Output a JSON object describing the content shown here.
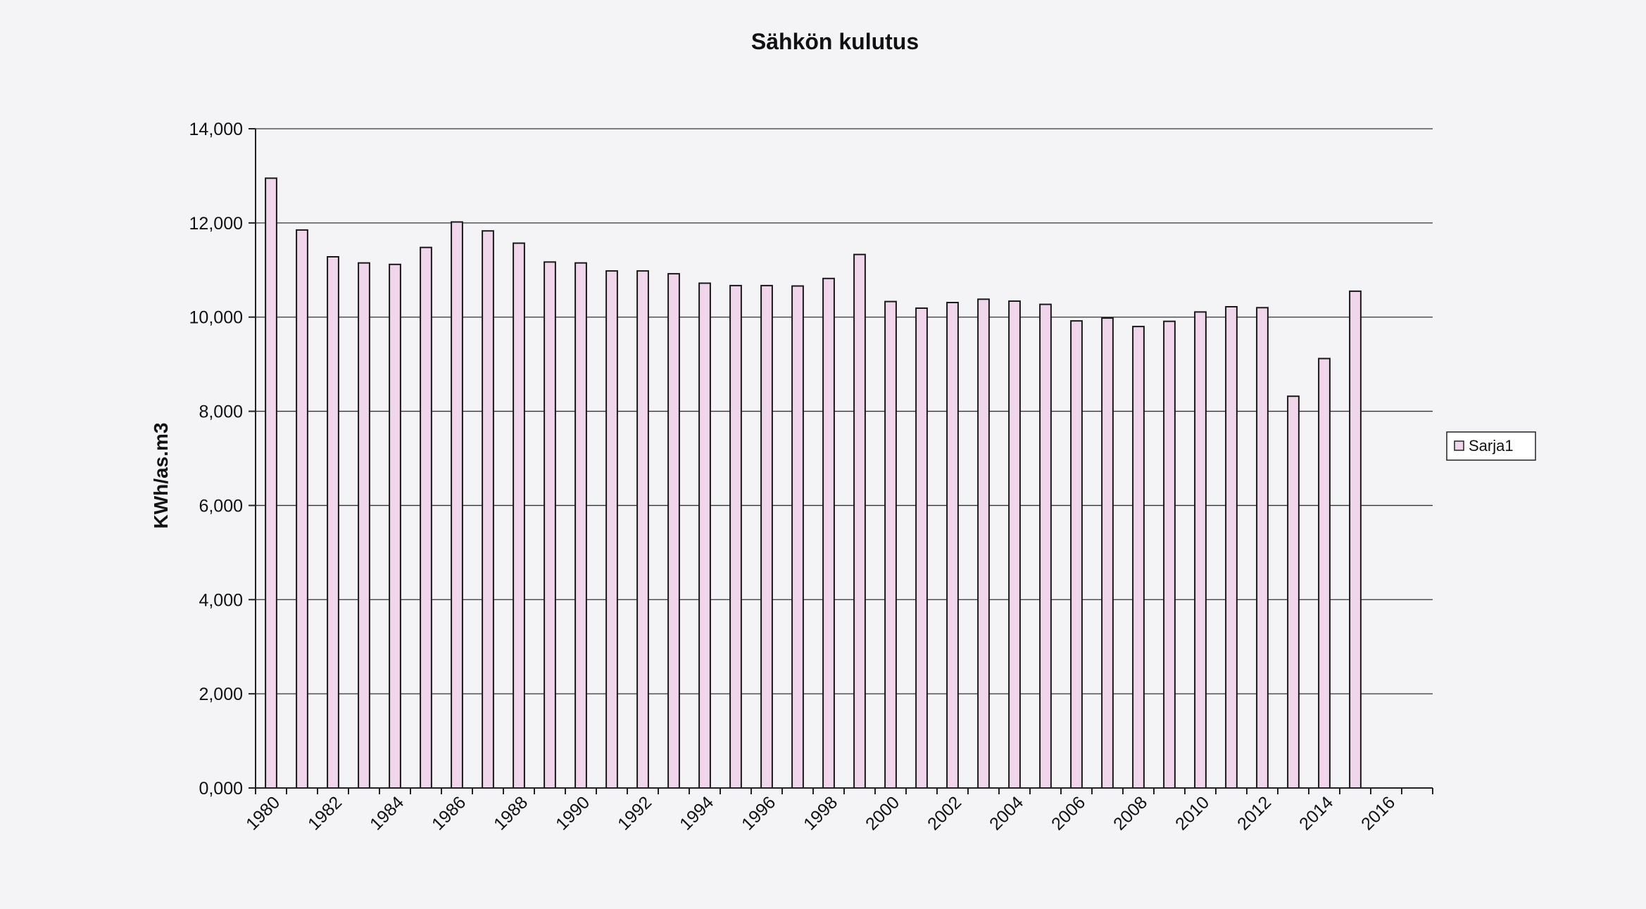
{
  "chart_data": {
    "type": "bar",
    "title": "Sähkön kulutus",
    "xlabel": "",
    "ylabel": "KWh/as.m3",
    "ylim": [
      0,
      14
    ],
    "y_ticks": [
      0,
      2,
      4,
      6,
      8,
      10,
      12,
      14
    ],
    "y_tick_labels": [
      "0,000",
      "2,000",
      "4,000",
      "6,000",
      "8,000",
      "10,000",
      "12,000",
      "14,000"
    ],
    "grid": true,
    "legend_position": "right",
    "x_tick_labels": [
      "1980",
      "1982",
      "1984",
      "1986",
      "1988",
      "1990",
      "1992",
      "1994",
      "1996",
      "1998",
      "2000",
      "2002",
      "2004",
      "2006",
      "2008",
      "2010",
      "2012",
      "2014",
      "2016"
    ],
    "categories": [
      1980,
      1981,
      1982,
      1983,
      1984,
      1985,
      1986,
      1987,
      1988,
      1989,
      1990,
      1991,
      1992,
      1993,
      1994,
      1995,
      1996,
      1997,
      1998,
      1999,
      2000,
      2001,
      2002,
      2003,
      2004,
      2005,
      2006,
      2007,
      2008,
      2009,
      2010,
      2011,
      2012,
      2013,
      2014,
      2015,
      2016,
      2017
    ],
    "series": [
      {
        "name": "Sarja1",
        "color": "#f0d6ea",
        "values": [
          12.95,
          11.85,
          11.28,
          11.15,
          11.12,
          11.48,
          12.02,
          11.83,
          11.57,
          11.17,
          11.15,
          10.98,
          10.98,
          10.92,
          10.72,
          10.67,
          10.67,
          10.66,
          10.82,
          11.33,
          10.33,
          10.19,
          10.31,
          10.38,
          10.34,
          10.27,
          9.92,
          9.98,
          9.8,
          9.91,
          10.11,
          10.22,
          10.2,
          8.32,
          9.12,
          10.55,
          null,
          null
        ]
      }
    ]
  }
}
